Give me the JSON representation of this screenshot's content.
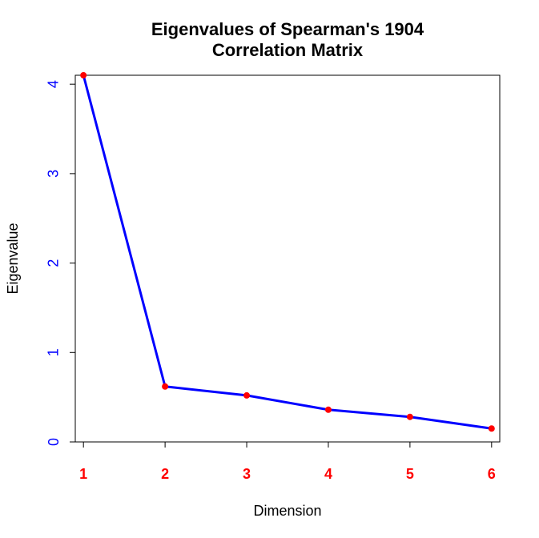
{
  "chart_data": {
    "type": "line",
    "title_lines": [
      "Eigenvalues of Spearman's 1904",
      "Correlation Matrix"
    ],
    "xlabel": "Dimension",
    "ylabel": "Eigenvalue",
    "x": [
      1,
      2,
      3,
      4,
      5,
      6
    ],
    "x_tick_labels": [
      "1",
      "2",
      "3",
      "4",
      "5",
      "6"
    ],
    "y_ticks": [
      0,
      1,
      2,
      3,
      4
    ],
    "y_tick_labels": [
      "0",
      "1",
      "2",
      "3",
      "4"
    ],
    "xlim": [
      0.9,
      6.1
    ],
    "ylim": [
      0,
      4.1
    ],
    "series": [
      {
        "values": [
          4.1,
          0.62,
          0.52,
          0.36,
          0.28,
          0.15
        ]
      }
    ],
    "grid": false,
    "legend": "none",
    "colors": {
      "line": "#0000ff",
      "points": "#ff0000",
      "x_tick_labels": "#ff0000",
      "y_tick_labels": "#0000ff",
      "axes": "#000000"
    }
  }
}
